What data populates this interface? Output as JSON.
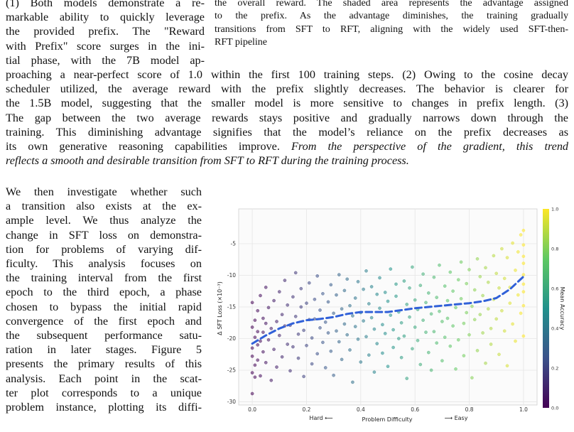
{
  "left_top": [
    "(1) Both models demonstrate a re-",
    "markable ability to quickly leverage",
    "the provided prefix. The \"Reward",
    "with Prefix\" score surges in the ini-",
    "tial phase, with the 7B model ap-"
  ],
  "caption": [
    "the overall reward. The shaded area represents the advantage assigned",
    "to the prefix. As the advantage diminishes, the training gradually",
    "transitions from SFT to RFT, aligning with the widely used SFT-then-",
    "RFT pipeline"
  ],
  "paragraph": [
    "proaching a near-perfect score of 1.0 within the first 100 training steps. (2) Owing to the cosine decay",
    "scheduler utilized, the average reward with the prefix slightly decreases. The behavior is clearer for",
    "the 1.5B model, suggesting that the smaller model is more sensitive to changes in prefix length. (3)",
    "The gap between the two average rewards stays positive and gradually narrows down through the",
    "training. This diminishing advantage signifies that the model’s reliance on the prefix decreases as"
  ],
  "paragraph_last_plain": "its own generative reasoning capabilities improve. ",
  "paragraph_last_italic": "From the perspective of the gradient, this trend",
  "paragraph_final_italic": "reflects a smooth and desirable transition from SFT to RFT during the training process.",
  "left_bottom": [
    "We then investigate whether such",
    "a transition also exists at the ex-",
    "ample level. We thus analyze the",
    "change in SFT loss on demonstra-",
    "tion for problems of varying dif-",
    "ficulty. This analysis focuses on",
    "the training interval from the first",
    "epoch to the third epoch, a phase",
    "chosen to bypass the initial rapid",
    "convergence of the first epoch and",
    "the subsequent performance satu-",
    "ration in later stages. Figure 5",
    "presents the primary results of this",
    "analysis. Each point in the scat-",
    "ter plot corresponds to a unique",
    "problem instance, plotting its diffi-"
  ],
  "chart_data": {
    "type": "scatter",
    "xlabel": "Problem Difficulty",
    "xlabel_left": "Hard ⟵",
    "xlabel_right": "⟶ Easy",
    "ylabel": "Δ SFT Loss (×10⁻³)",
    "colorbar_label": "Mean Accuracy",
    "xlim": [
      -0.05,
      1.05
    ],
    "ylim": [
      -30.5,
      0.5
    ],
    "x_ticks": [
      "0.0",
      "0.2",
      "0.4",
      "0.6",
      "0.8",
      "1.0"
    ],
    "y_ticks": [
      "-5",
      "-10",
      "-15",
      "-20",
      "-25",
      "-30"
    ],
    "colorbar_ticks": [
      "1.0",
      "0.8",
      "0.6",
      "0.4",
      "0.2",
      "0.0"
    ],
    "grid": true,
    "colormap": [
      "#440154",
      "#3b528b",
      "#21918c",
      "#5ec962",
      "#fde725"
    ],
    "trend_color": "#3060d8",
    "trend": {
      "x": [
        0.0,
        0.05,
        0.1,
        0.15,
        0.2,
        0.25,
        0.3,
        0.35,
        0.4,
        0.45,
        0.5,
        0.55,
        0.6,
        0.65,
        0.7,
        0.75,
        0.8,
        0.85,
        0.9,
        0.95,
        1.0
      ],
      "y": [
        -20.8,
        -19.5,
        -18.4,
        -17.6,
        -17.1,
        -16.9,
        -16.6,
        -16.1,
        -15.8,
        -15.8,
        -15.8,
        -15.5,
        -15.2,
        -15.0,
        -14.8,
        -14.6,
        -14.4,
        -14.1,
        -13.6,
        -12.2,
        -10.2
      ]
    },
    "points": [
      [
        0.0,
        -18.2
      ],
      [
        0.0,
        -21.5
      ],
      [
        0.0,
        -25.4
      ],
      [
        0.0,
        -14.3
      ],
      [
        0.0,
        -22.8
      ],
      [
        0.0,
        -28.7
      ],
      [
        0.01,
        -17.1
      ],
      [
        0.01,
        -24.2
      ],
      [
        0.01,
        -19.8
      ],
      [
        0.01,
        -26.1
      ],
      [
        0.02,
        -15.6
      ],
      [
        0.02,
        -21.0
      ],
      [
        0.02,
        -23.4
      ],
      [
        0.02,
        -18.9
      ],
      [
        0.03,
        -13.2
      ],
      [
        0.03,
        -20.4
      ],
      [
        0.03,
        -25.9
      ],
      [
        0.04,
        -16.8
      ],
      [
        0.04,
        -22.1
      ],
      [
        0.04,
        -19.0
      ],
      [
        0.05,
        -11.9
      ],
      [
        0.05,
        -17.6
      ],
      [
        0.05,
        -23.8
      ],
      [
        0.06,
        -20.2
      ],
      [
        0.06,
        -15.1
      ],
      [
        0.07,
        -18.4
      ],
      [
        0.07,
        -26.6
      ],
      [
        0.08,
        -14.0
      ],
      [
        0.08,
        -21.7
      ],
      [
        0.09,
        -17.3
      ],
      [
        0.09,
        -24.5
      ],
      [
        0.1,
        -12.6
      ],
      [
        0.1,
        -19.5
      ],
      [
        0.11,
        -16.2
      ],
      [
        0.11,
        -22.9
      ],
      [
        0.12,
        -10.8
      ],
      [
        0.12,
        -18.0
      ],
      [
        0.13,
        -20.9
      ],
      [
        0.13,
        -14.7
      ],
      [
        0.14,
        -25.1
      ],
      [
        0.14,
        -17.9
      ],
      [
        0.15,
        -13.4
      ],
      [
        0.15,
        -21.3
      ],
      [
        0.16,
        -16.5
      ],
      [
        0.16,
        -9.6
      ],
      [
        0.17,
        -19.3
      ],
      [
        0.17,
        -23.1
      ],
      [
        0.18,
        -15.0
      ],
      [
        0.18,
        -12.1
      ],
      [
        0.19,
        -18.7
      ],
      [
        0.19,
        -26.0
      ],
      [
        0.2,
        -14.4
      ],
      [
        0.2,
        -21.1
      ],
      [
        0.21,
        -11.2
      ],
      [
        0.21,
        -17.0
      ],
      [
        0.22,
        -24.0
      ],
      [
        0.22,
        -19.9
      ],
      [
        0.23,
        -13.8
      ],
      [
        0.23,
        -16.9
      ],
      [
        0.24,
        -22.4
      ],
      [
        0.24,
        -10.1
      ],
      [
        0.25,
        -18.3
      ],
      [
        0.25,
        -15.5
      ],
      [
        0.26,
        -20.6
      ],
      [
        0.26,
        -12.9
      ],
      [
        0.27,
        -24.6
      ],
      [
        0.27,
        -17.4
      ],
      [
        0.28,
        -14.2
      ],
      [
        0.28,
        -19.1
      ],
      [
        0.29,
        -11.5
      ],
      [
        0.29,
        -22.0
      ],
      [
        0.3,
        -16.0
      ],
      [
        0.3,
        -25.8
      ],
      [
        0.31,
        -13.1
      ],
      [
        0.31,
        -18.8
      ],
      [
        0.32,
        -9.9
      ],
      [
        0.32,
        -20.5
      ],
      [
        0.33,
        -15.3
      ],
      [
        0.33,
        -23.3
      ],
      [
        0.34,
        -12.4
      ],
      [
        0.34,
        -17.7
      ],
      [
        0.35,
        -19.4
      ],
      [
        0.35,
        -10.6
      ],
      [
        0.36,
        -14.8
      ],
      [
        0.36,
        -21.8
      ],
      [
        0.37,
        -16.4
      ],
      [
        0.37,
        -26.9
      ],
      [
        0.38,
        -13.6
      ],
      [
        0.38,
        -18.1
      ],
      [
        0.39,
        -11.0
      ],
      [
        0.39,
        -20.1
      ],
      [
        0.4,
        -15.9
      ],
      [
        0.4,
        -23.7
      ],
      [
        0.41,
        -12.2
      ],
      [
        0.41,
        -17.2
      ],
      [
        0.42,
        -9.3
      ],
      [
        0.42,
        -19.7
      ],
      [
        0.43,
        -14.5
      ],
      [
        0.43,
        -22.6
      ],
      [
        0.44,
        -16.7
      ],
      [
        0.44,
        -11.8
      ],
      [
        0.45,
        -25.3
      ],
      [
        0.45,
        -18.5
      ],
      [
        0.46,
        -13.0
      ],
      [
        0.46,
        -20.8
      ],
      [
        0.47,
        -15.2
      ],
      [
        0.47,
        -10.4
      ],
      [
        0.48,
        -17.8
      ],
      [
        0.48,
        -22.3
      ],
      [
        0.49,
        -12.7
      ],
      [
        0.49,
        -19.2
      ],
      [
        0.5,
        -14.1
      ],
      [
        0.5,
        -24.4
      ],
      [
        0.51,
        -16.3
      ],
      [
        0.51,
        -9.0
      ],
      [
        0.52,
        -18.6
      ],
      [
        0.52,
        -21.4
      ],
      [
        0.53,
        -13.3
      ],
      [
        0.53,
        -11.4
      ],
      [
        0.54,
        -20.0
      ],
      [
        0.54,
        -15.8
      ],
      [
        0.55,
        -23.0
      ],
      [
        0.55,
        -17.5
      ],
      [
        0.56,
        -10.9
      ],
      [
        0.56,
        -19.6
      ],
      [
        0.57,
        -14.6
      ],
      [
        0.57,
        -26.3
      ],
      [
        0.58,
        -12.0
      ],
      [
        0.58,
        -16.6
      ],
      [
        0.59,
        -21.6
      ],
      [
        0.59,
        -8.7
      ],
      [
        0.6,
        -18.2
      ],
      [
        0.6,
        -13.9
      ],
      [
        0.61,
        -20.3
      ],
      [
        0.61,
        -15.4
      ],
      [
        0.62,
        -11.6
      ],
      [
        0.62,
        -24.1
      ],
      [
        0.63,
        -17.1
      ],
      [
        0.63,
        -9.8
      ],
      [
        0.64,
        -19.0
      ],
      [
        0.64,
        -14.3
      ],
      [
        0.65,
        -22.2
      ],
      [
        0.65,
        -12.8
      ],
      [
        0.66,
        -16.1
      ],
      [
        0.66,
        -25.0
      ],
      [
        0.67,
        -10.3
      ],
      [
        0.67,
        -18.9
      ],
      [
        0.68,
        -13.5
      ],
      [
        0.68,
        -20.7
      ],
      [
        0.69,
        -15.7
      ],
      [
        0.69,
        -8.4
      ],
      [
        0.7,
        -17.3
      ],
      [
        0.7,
        -23.5
      ],
      [
        0.71,
        -11.7
      ],
      [
        0.71,
        -19.8
      ],
      [
        0.72,
        -14.0
      ],
      [
        0.72,
        -16.8
      ],
      [
        0.73,
        -21.2
      ],
      [
        0.73,
        -9.5
      ],
      [
        0.74,
        -12.5
      ],
      [
        0.74,
        -18.0
      ],
      [
        0.75,
        -15.1
      ],
      [
        0.75,
        -24.8
      ],
      [
        0.76,
        -10.7
      ],
      [
        0.76,
        -20.2
      ],
      [
        0.77,
        -13.7
      ],
      [
        0.77,
        -7.9
      ],
      [
        0.78,
        -17.6
      ],
      [
        0.78,
        -22.7
      ],
      [
        0.79,
        -11.3
      ],
      [
        0.79,
        -15.9
      ],
      [
        0.8,
        -19.4
      ],
      [
        0.8,
        -9.1
      ],
      [
        0.81,
        -14.9
      ],
      [
        0.81,
        -26.2
      ],
      [
        0.82,
        -12.3
      ],
      [
        0.82,
        -17.0
      ],
      [
        0.83,
        -21.9
      ],
      [
        0.83,
        -7.4
      ],
      [
        0.84,
        -10.2
      ],
      [
        0.84,
        -16.2
      ],
      [
        0.85,
        -19.1
      ],
      [
        0.85,
        -13.2
      ],
      [
        0.86,
        -23.9
      ],
      [
        0.86,
        -8.8
      ],
      [
        0.87,
        -15.3
      ],
      [
        0.87,
        -11.1
      ],
      [
        0.88,
        -18.4
      ],
      [
        0.88,
        -20.9
      ],
      [
        0.89,
        -6.9
      ],
      [
        0.89,
        -13.8
      ],
      [
        0.9,
        -16.9
      ],
      [
        0.9,
        -9.7
      ],
      [
        0.91,
        -22.5
      ],
      [
        0.91,
        -12.0
      ],
      [
        0.92,
        -5.8
      ],
      [
        0.92,
        -15.6
      ],
      [
        0.93,
        -18.8
      ],
      [
        0.93,
        -10.5
      ],
      [
        0.94,
        -24.3
      ],
      [
        0.94,
        -7.2
      ],
      [
        0.95,
        -14.4
      ],
      [
        0.95,
        -11.9
      ],
      [
        0.96,
        -4.9
      ],
      [
        0.96,
        -17.7
      ],
      [
        0.97,
        -9.2
      ],
      [
        0.97,
        -20.4
      ],
      [
        0.98,
        -6.3
      ],
      [
        0.98,
        -13.1
      ],
      [
        0.99,
        -3.6
      ],
      [
        0.99,
        -16.0
      ],
      [
        1.0,
        -8.1
      ],
      [
        1.0,
        -11.4
      ],
      [
        1.0,
        -5.2
      ],
      [
        1.0,
        -14.8
      ],
      [
        1.0,
        -2.9
      ],
      [
        1.0,
        -19.6
      ],
      [
        1.0,
        -9.9
      ],
      [
        1.0,
        -7.0
      ],
      [
        1.0,
        -12.6
      ]
    ]
  }
}
